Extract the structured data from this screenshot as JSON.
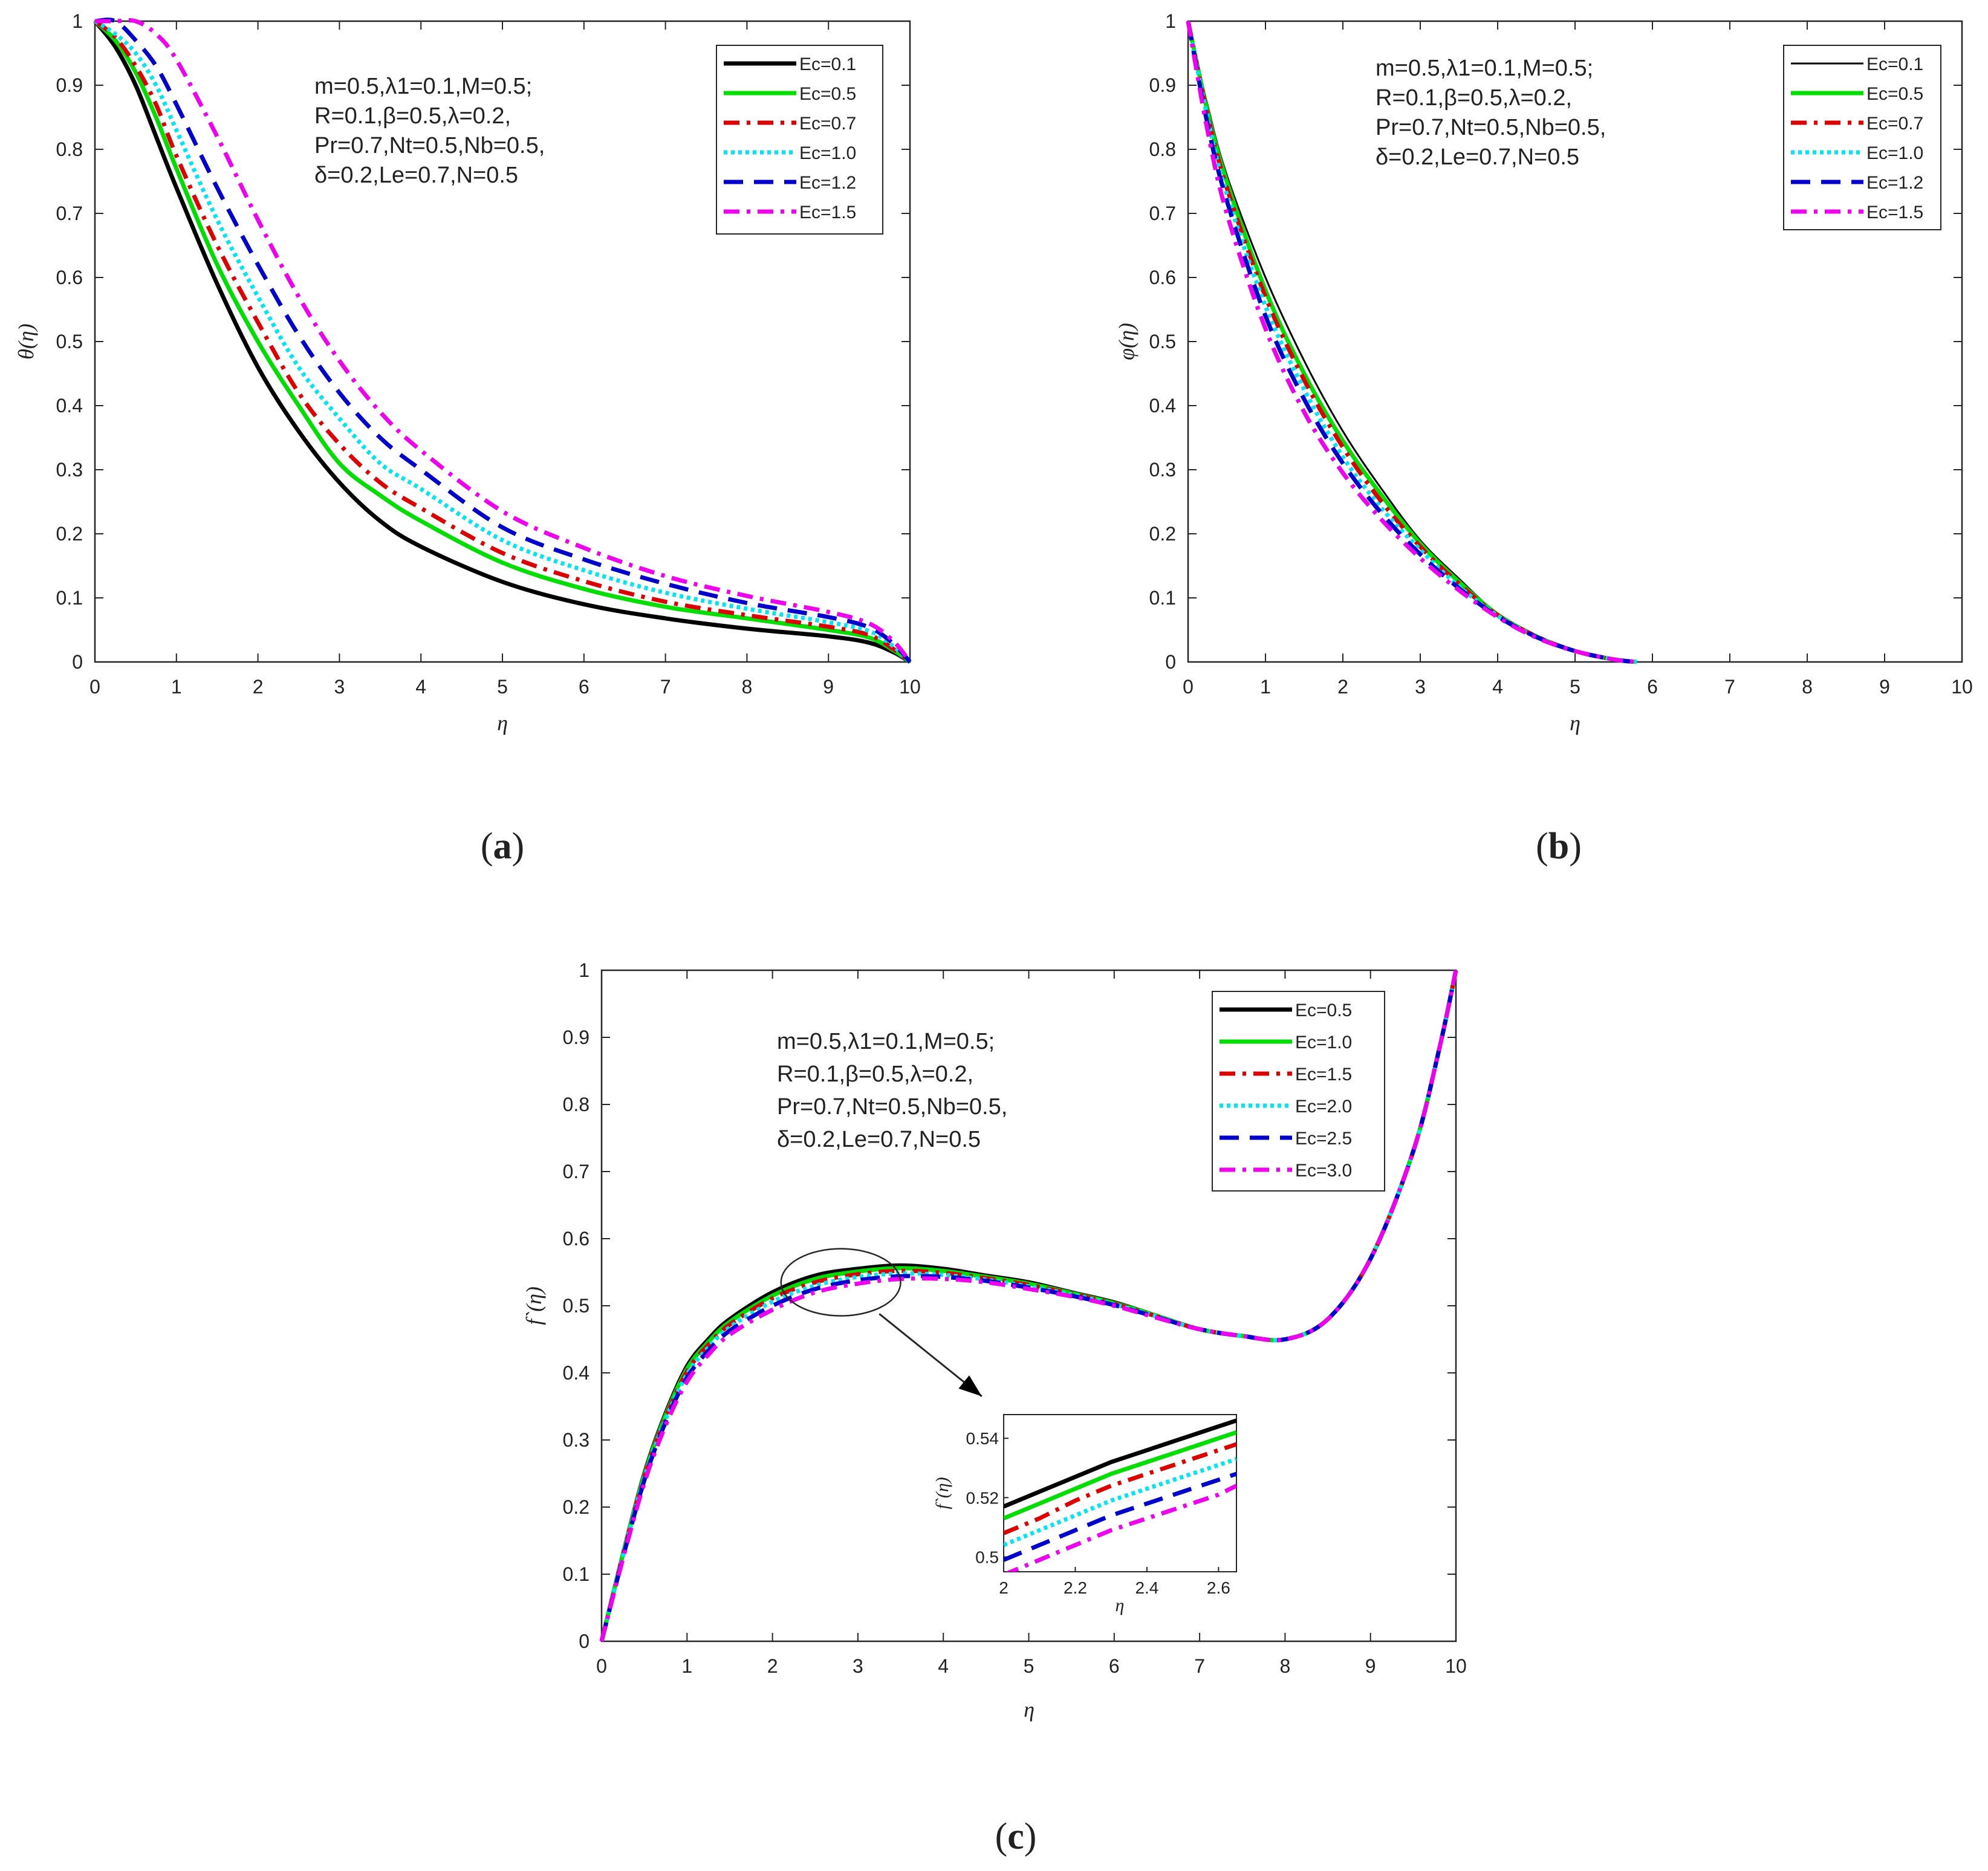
{
  "figure": {
    "panels": [
      {
        "id": "a",
        "label": "a",
        "ylabel": "θ(η)",
        "xlabel": "η",
        "params": [
          "m=0.5,λ1=0.1,M=0.5;",
          "R=0.1,β=0.5,λ=0.2,",
          "Pr=0.7,Nt=0.5,Nb=0.5,",
          "δ=0.2,Le=0.7,N=0.5"
        ]
      },
      {
        "id": "b",
        "label": "b",
        "ylabel": "φ(η)",
        "xlabel": "η",
        "params": [
          "m=0.5,λ1=0.1,M=0.5;",
          "R=0.1,β=0.5,λ=0.2,",
          "Pr=0.7,Nt=0.5,Nb=0.5,",
          "δ=0.2,Le=0.7,N=0.5"
        ]
      },
      {
        "id": "c",
        "label": "c",
        "ylabel": "f`(η)",
        "xlabel": "η",
        "params": [
          "m=0.5,λ1=0.1,M=0.5;",
          "R=0.1,β=0.5,λ=0.2,",
          "Pr=0.7,Nt=0.5,Nb=0.5,",
          "δ=0.2,Le=0.7,N=0.5"
        ]
      }
    ]
  },
  "colors": {
    "black": "#000000",
    "green": "#00dd00",
    "red": "#dd0000",
    "cyan": "#00e5ee",
    "blue": "#0000cc",
    "magenta": "#ee00ee"
  },
  "chart_data": [
    {
      "id": "a",
      "type": "line",
      "title": "",
      "xlabel": "η",
      "ylabel": "θ(η)",
      "xlim": [
        0,
        10
      ],
      "ylim": [
        0,
        1
      ],
      "xticks": [
        "0",
        "1",
        "2",
        "3",
        "4",
        "5",
        "6",
        "7",
        "8",
        "9",
        "10"
      ],
      "yticks": [
        "0",
        "0.1",
        "0.2",
        "0.3",
        "0.4",
        "0.5",
        "0.6",
        "0.7",
        "0.8",
        "0.9",
        "1"
      ],
      "x": [
        0,
        0.25,
        0.5,
        0.75,
        1,
        1.5,
        2,
        2.5,
        3,
        3.5,
        4,
        5,
        6,
        7,
        8,
        9,
        9.5,
        9.8,
        10
      ],
      "series": [
        {
          "name": "Ec=0.1",
          "color": "black",
          "dash": "solid",
          "width": 7,
          "values": [
            1,
            0.96,
            0.9,
            0.82,
            0.74,
            0.59,
            0.46,
            0.36,
            0.28,
            0.22,
            0.18,
            0.125,
            0.09,
            0.068,
            0.052,
            0.04,
            0.03,
            0.015,
            0
          ]
        },
        {
          "name": "Ec=0.5",
          "color": "green",
          "dash": "solid",
          "width": 7,
          "values": [
            1,
            0.97,
            0.92,
            0.85,
            0.77,
            0.62,
            0.5,
            0.4,
            0.31,
            0.26,
            0.22,
            0.155,
            0.114,
            0.086,
            0.068,
            0.05,
            0.038,
            0.018,
            0
          ]
        },
        {
          "name": "Ec=0.7",
          "color": "red",
          "dash": "dashdot",
          "width": 7,
          "values": [
            1,
            0.975,
            0.93,
            0.87,
            0.79,
            0.65,
            0.53,
            0.42,
            0.34,
            0.28,
            0.24,
            0.17,
            0.126,
            0.094,
            0.073,
            0.055,
            0.042,
            0.02,
            0
          ]
        },
        {
          "name": "Ec=1.0",
          "color": "cyan",
          "dash": "dotted",
          "width": 7,
          "values": [
            1,
            0.98,
            0.95,
            0.9,
            0.83,
            0.69,
            0.57,
            0.46,
            0.38,
            0.31,
            0.27,
            0.19,
            0.143,
            0.108,
            0.083,
            0.062,
            0.048,
            0.024,
            0
          ]
        },
        {
          "name": "Ec=1.2",
          "color": "blue",
          "dash": "dashed",
          "width": 7,
          "values": [
            1,
            1.0,
            0.97,
            0.93,
            0.87,
            0.74,
            0.62,
            0.51,
            0.42,
            0.35,
            0.3,
            0.21,
            0.16,
            0.122,
            0.092,
            0.07,
            0.054,
            0.028,
            0
          ]
        },
        {
          "name": "Ec=1.5",
          "color": "magenta",
          "dash": "dashdot",
          "width": 7,
          "values": [
            1.0,
            1.0,
            1.0,
            0.98,
            0.94,
            0.82,
            0.69,
            0.57,
            0.47,
            0.39,
            0.33,
            0.235,
            0.178,
            0.134,
            0.103,
            0.078,
            0.06,
            0.032,
            0
          ]
        }
      ]
    },
    {
      "id": "b",
      "type": "line",
      "title": "",
      "xlabel": "η",
      "ylabel": "φ(η)",
      "xlim": [
        0,
        10
      ],
      "ylim": [
        0,
        1
      ],
      "xticks": [
        "0",
        "1",
        "2",
        "3",
        "4",
        "5",
        "6",
        "7",
        "8",
        "9",
        "10"
      ],
      "yticks": [
        "0",
        "0.1",
        "0.2",
        "0.3",
        "0.4",
        "0.5",
        "0.6",
        "0.7",
        "0.8",
        "0.9",
        "1"
      ],
      "x": [
        0,
        0.25,
        0.5,
        1,
        1.5,
        2,
        2.5,
        3,
        3.5,
        4,
        4.5,
        5,
        5.5,
        5.8
      ],
      "series": [
        {
          "name": "Ec=0.1",
          "color": "black",
          "dash": "solid",
          "width": 3,
          "values": [
            1,
            0.87,
            0.76,
            0.6,
            0.47,
            0.36,
            0.27,
            0.19,
            0.13,
            0.075,
            0.04,
            0.017,
            0.004,
            0
          ]
        },
        {
          "name": "Ec=0.5",
          "color": "green",
          "dash": "solid",
          "width": 7,
          "values": [
            1,
            0.86,
            0.75,
            0.58,
            0.45,
            0.345,
            0.26,
            0.185,
            0.125,
            0.074,
            0.04,
            0.017,
            0.004,
            0
          ]
        },
        {
          "name": "Ec=0.7",
          "color": "red",
          "dash": "dashdot",
          "width": 7,
          "values": [
            1,
            0.855,
            0.74,
            0.57,
            0.44,
            0.335,
            0.25,
            0.18,
            0.122,
            0.073,
            0.04,
            0.017,
            0.004,
            0
          ]
        },
        {
          "name": "Ec=1.0",
          "color": "cyan",
          "dash": "dotted",
          "width": 7,
          "values": [
            1,
            0.85,
            0.73,
            0.555,
            0.425,
            0.32,
            0.24,
            0.175,
            0.118,
            0.072,
            0.039,
            0.017,
            0.004,
            0
          ]
        },
        {
          "name": "Ec=1.2",
          "color": "blue",
          "dash": "dashed",
          "width": 7,
          "values": [
            1,
            0.84,
            0.72,
            0.54,
            0.41,
            0.31,
            0.232,
            0.168,
            0.115,
            0.071,
            0.039,
            0.017,
            0.004,
            0
          ]
        },
        {
          "name": "Ec=1.5",
          "color": "magenta",
          "dash": "dashdot",
          "width": 7,
          "values": [
            1,
            0.83,
            0.7,
            0.52,
            0.39,
            0.295,
            0.222,
            0.162,
            0.112,
            0.07,
            0.038,
            0.017,
            0.004,
            0
          ]
        }
      ]
    },
    {
      "id": "c",
      "type": "line",
      "title": "",
      "xlabel": "η",
      "ylabel": "f`(η)",
      "xlim": [
        0,
        10
      ],
      "ylim": [
        0,
        1
      ],
      "xticks": [
        "0",
        "1",
        "2",
        "3",
        "4",
        "5",
        "6",
        "7",
        "8",
        "9",
        "10"
      ],
      "yticks": [
        "0",
        "0.1",
        "0.2",
        "0.3",
        "0.4",
        "0.5",
        "0.6",
        "0.7",
        "0.8",
        "0.9",
        "1"
      ],
      "x": [
        0,
        0.25,
        0.5,
        0.75,
        1,
        1.25,
        1.5,
        2,
        2.5,
        3,
        3.5,
        4,
        4.5,
        5,
        5.5,
        6,
        6.5,
        7,
        7.5,
        8,
        8.5,
        9,
        9.5,
        9.8,
        10
      ],
      "series": [
        {
          "name": "Ec=0.5",
          "color": "black",
          "dash": "solid",
          "width": 7,
          "values": [
            0,
            0.13,
            0.25,
            0.34,
            0.41,
            0.45,
            0.48,
            0.52,
            0.545,
            0.555,
            0.56,
            0.555,
            0.545,
            0.535,
            0.52,
            0.505,
            0.485,
            0.465,
            0.455,
            0.45,
            0.48,
            0.57,
            0.73,
            0.88,
            1
          ]
        },
        {
          "name": "Ec=1.0",
          "color": "green",
          "dash": "solid",
          "width": 7,
          "values": [
            0,
            0.13,
            0.248,
            0.337,
            0.406,
            0.446,
            0.476,
            0.515,
            0.54,
            0.551,
            0.556,
            0.552,
            0.543,
            0.533,
            0.519,
            0.504,
            0.485,
            0.465,
            0.455,
            0.45,
            0.48,
            0.57,
            0.73,
            0.88,
            1
          ]
        },
        {
          "name": "Ec=1.5",
          "color": "red",
          "dash": "dashdot",
          "width": 7,
          "values": [
            0,
            0.128,
            0.245,
            0.334,
            0.402,
            0.442,
            0.472,
            0.511,
            0.535,
            0.547,
            0.552,
            0.549,
            0.541,
            0.531,
            0.518,
            0.503,
            0.484,
            0.465,
            0.455,
            0.45,
            0.48,
            0.57,
            0.73,
            0.88,
            1
          ]
        },
        {
          "name": "Ec=2.0",
          "color": "cyan",
          "dash": "dotted",
          "width": 7,
          "values": [
            0,
            0.127,
            0.243,
            0.331,
            0.398,
            0.438,
            0.468,
            0.506,
            0.53,
            0.543,
            0.548,
            0.546,
            0.539,
            0.529,
            0.517,
            0.502,
            0.484,
            0.465,
            0.455,
            0.45,
            0.48,
            0.57,
            0.73,
            0.88,
            1
          ]
        },
        {
          "name": "Ec=2.5",
          "color": "blue",
          "dash": "dashed",
          "width": 7,
          "values": [
            0,
            0.125,
            0.24,
            0.327,
            0.393,
            0.433,
            0.463,
            0.5,
            0.525,
            0.538,
            0.544,
            0.543,
            0.537,
            0.527,
            0.515,
            0.501,
            0.483,
            0.465,
            0.455,
            0.45,
            0.48,
            0.57,
            0.73,
            0.88,
            1
          ]
        },
        {
          "name": "Ec=3.0",
          "color": "magenta",
          "dash": "dashdot",
          "width": 7,
          "values": [
            0,
            0.123,
            0.236,
            0.322,
            0.387,
            0.427,
            0.457,
            0.494,
            0.52,
            0.533,
            0.54,
            0.54,
            0.535,
            0.525,
            0.514,
            0.5,
            0.482,
            0.465,
            0.455,
            0.45,
            0.48,
            0.57,
            0.73,
            0.88,
            1
          ]
        }
      ],
      "inset": {
        "xlabel": "η",
        "ylabel": "f`(η)",
        "xlim": [
          2,
          2.65
        ],
        "ylim": [
          0.495,
          0.548
        ],
        "xticks": [
          "2",
          "2.2",
          "2.4",
          "2.6"
        ],
        "xtick_values": [
          2,
          2.2,
          2.4,
          2.6
        ],
        "yticks": [
          "0.5",
          "0.52",
          "0.54"
        ],
        "ytick_values": [
          0.5,
          0.52,
          0.54
        ],
        "x": [
          2,
          2.1,
          2.2,
          2.3,
          2.4,
          2.5,
          2.6,
          2.65
        ],
        "series": [
          {
            "name": "Ec=0.5",
            "color": "black",
            "dash": "solid",
            "values": [
              0.517,
              0.522,
              0.527,
              0.532,
              0.536,
              0.54,
              0.544,
              0.546
            ]
          },
          {
            "name": "Ec=1.0",
            "color": "green",
            "dash": "solid",
            "values": [
              0.513,
              0.518,
              0.523,
              0.528,
              0.532,
              0.536,
              0.54,
              0.542
            ]
          },
          {
            "name": "Ec=1.5",
            "color": "red",
            "dash": "dashdot",
            "values": [
              0.508,
              0.513,
              0.519,
              0.524,
              0.528,
              0.532,
              0.536,
              0.538
            ]
          },
          {
            "name": "Ec=2.0",
            "color": "cyan",
            "dash": "dotted",
            "values": [
              0.504,
              0.509,
              0.514,
              0.519,
              0.523,
              0.527,
              0.531,
              0.533
            ]
          },
          {
            "name": "Ec=2.5",
            "color": "blue",
            "dash": "dashed",
            "values": [
              0.499,
              0.504,
              0.509,
              0.514,
              0.518,
              0.522,
              0.526,
              0.528
            ]
          },
          {
            "name": "Ec=3.0",
            "color": "magenta",
            "dash": "dashdot",
            "values": [
              0.494,
              0.499,
              0.504,
              0.509,
              0.513,
              0.517,
              0.521,
              0.524
            ]
          }
        ]
      },
      "zoom_ellipse": {
        "center": [
          2.8,
          0.535
        ],
        "rx": 0.7,
        "ry": 0.05
      },
      "arrow": {
        "from": [
          3.25,
          0.488
        ],
        "to": [
          4.45,
          0.365
        ]
      }
    }
  ]
}
